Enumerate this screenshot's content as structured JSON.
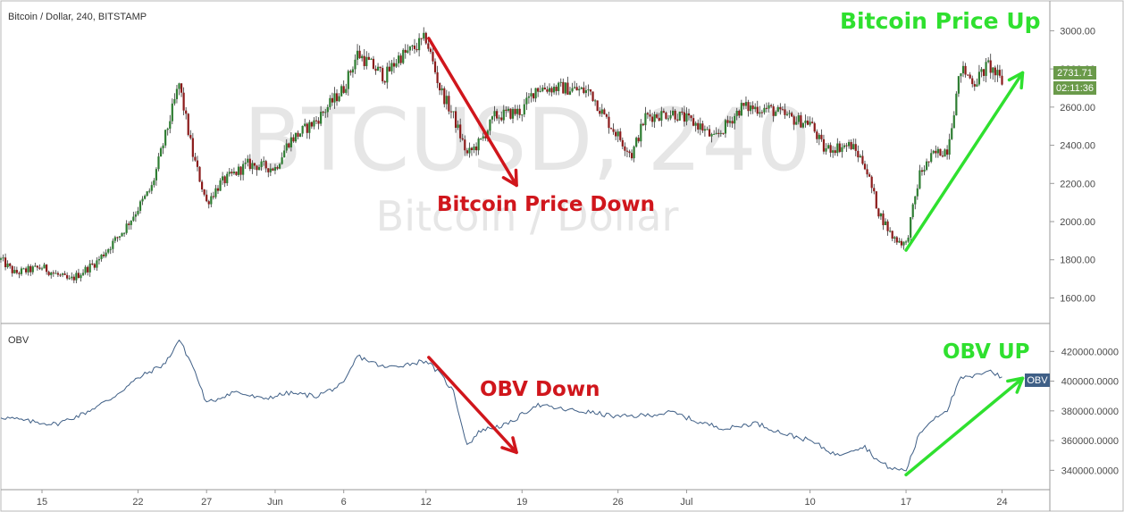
{
  "header": {
    "symbol_title": "Bitcoin / Dollar, 240, BITSTAMP",
    "obv_label": "OBV"
  },
  "watermark": {
    "symbol": "BTCUSD, 240",
    "name": "Bitcoin / Dollar"
  },
  "annotations": {
    "price_up": "Bitcoin Price Up",
    "price_down": "Bitcoin Price Down",
    "obv_down": "OBV Down",
    "obv_up": "OBV UP"
  },
  "badges": {
    "last_price": "2731.71",
    "countdown": "02:11:36",
    "obv_tag": "OBV"
  },
  "colors": {
    "candle_up": "#2e7d32",
    "candle_down": "#8b1a1a",
    "obv_line": "#3f5f86",
    "price_badge": "#6a9a4a",
    "obv_badge": "#3f5f86",
    "arrow_red": "#d0161c",
    "arrow_green": "#2fe02f"
  },
  "chart_data": [
    {
      "type": "candlestick",
      "title": "Bitcoin / Dollar, 240, BITSTAMP",
      "y_ticks": [
        "3000.00",
        "2800.00",
        "2600.00",
        "2400.00",
        "2200.00",
        "2000.00",
        "1800.00",
        "1600.00"
      ],
      "ylim": [
        1560,
        3030
      ],
      "x_ticks": [
        "15",
        "22",
        "27",
        "Jun",
        "6",
        "12",
        "19",
        "26",
        "Jul",
        "10",
        "17",
        "24"
      ],
      "last_value": 2731.71,
      "anchor_points": [
        {
          "x": "May 12",
          "y": 1800
        },
        {
          "x": "May 13",
          "y": 1730
        },
        {
          "x": "May 15",
          "y": 1760
        },
        {
          "x": "May 17",
          "y": 1690
        },
        {
          "x": "May 19",
          "y": 1790
        },
        {
          "x": "May 21",
          "y": 1960
        },
        {
          "x": "May 23",
          "y": 2180
        },
        {
          "x": "May 24",
          "y": 2450
        },
        {
          "x": "May 25",
          "y": 2720
        },
        {
          "x": "May 26",
          "y": 2350
        },
        {
          "x": "May 27",
          "y": 2100
        },
        {
          "x": "May 28",
          "y": 2200
        },
        {
          "x": "May 30",
          "y": 2300
        },
        {
          "x": "Jun 1",
          "y": 2280
        },
        {
          "x": "Jun 2",
          "y": 2420
        },
        {
          "x": "Jun 4",
          "y": 2530
        },
        {
          "x": "Jun 6",
          "y": 2700
        },
        {
          "x": "Jun 7",
          "y": 2880
        },
        {
          "x": "Jun 8",
          "y": 2820
        },
        {
          "x": "Jun 9",
          "y": 2760
        },
        {
          "x": "Jun 10",
          "y": 2860
        },
        {
          "x": "Jun 11",
          "y": 2900
        },
        {
          "x": "Jun 12",
          "y": 2960
        },
        {
          "x": "Jun 13",
          "y": 2700
        },
        {
          "x": "Jun 14",
          "y": 2550
        },
        {
          "x": "Jun 15",
          "y": 2350
        },
        {
          "x": "Jun 16",
          "y": 2420
        },
        {
          "x": "Jun 17",
          "y": 2550
        },
        {
          "x": "Jun 19",
          "y": 2580
        },
        {
          "x": "Jun 20",
          "y": 2700
        },
        {
          "x": "Jun 22",
          "y": 2700
        },
        {
          "x": "Jun 24",
          "y": 2680
        },
        {
          "x": "Jun 25",
          "y": 2550
        },
        {
          "x": "Jun 26",
          "y": 2450
        },
        {
          "x": "Jun 27",
          "y": 2350
        },
        {
          "x": "Jun 28",
          "y": 2550
        },
        {
          "x": "Jun 30",
          "y": 2570
        },
        {
          "x": "Jul 2",
          "y": 2500
        },
        {
          "x": "Jul 3",
          "y": 2430
        },
        {
          "x": "Jul 5",
          "y": 2600
        },
        {
          "x": "Jul 7",
          "y": 2590
        },
        {
          "x": "Jul 9",
          "y": 2530
        },
        {
          "x": "Jul 10",
          "y": 2520
        },
        {
          "x": "Jul 11",
          "y": 2380
        },
        {
          "x": "Jul 13",
          "y": 2400
        },
        {
          "x": "Jul 14",
          "y": 2300
        },
        {
          "x": "Jul 15",
          "y": 2050
        },
        {
          "x": "Jul 16",
          "y": 1920
        },
        {
          "x": "Jul 17",
          "y": 1880
        },
        {
          "x": "Jul 18",
          "y": 2250
        },
        {
          "x": "Jul 19",
          "y": 2350
        },
        {
          "x": "Jul 20",
          "y": 2380
        },
        {
          "x": "Jul 21",
          "y": 2800
        },
        {
          "x": "Jul 22",
          "y": 2730
        },
        {
          "x": "Jul 23",
          "y": 2820
        },
        {
          "x": "Jul 24",
          "y": 2731.71
        }
      ]
    },
    {
      "type": "line",
      "title": "OBV",
      "y_ticks": [
        "420000.0000",
        "400000.0000",
        "380000.0000",
        "360000.0000",
        "340000.0000"
      ],
      "ylim": [
        333000,
        431000
      ],
      "series": [
        {
          "name": "OBV",
          "points": [
            {
              "x": "May 12",
              "y": 376000
            },
            {
              "x": "May 14",
              "y": 373000
            },
            {
              "x": "May 16",
              "y": 371000
            },
            {
              "x": "May 18",
              "y": 378000
            },
            {
              "x": "May 20",
              "y": 388000
            },
            {
              "x": "May 22",
              "y": 402000
            },
            {
              "x": "May 24",
              "y": 412000
            },
            {
              "x": "May 25",
              "y": 428000
            },
            {
              "x": "May 26",
              "y": 410000
            },
            {
              "x": "May 27",
              "y": 385000
            },
            {
              "x": "May 29",
              "y": 393000
            },
            {
              "x": "May 31",
              "y": 388000
            },
            {
              "x": "Jun 2",
              "y": 392000
            },
            {
              "x": "Jun 4",
              "y": 390000
            },
            {
              "x": "Jun 6",
              "y": 398000
            },
            {
              "x": "Jun 7",
              "y": 417000
            },
            {
              "x": "Jun 9",
              "y": 409000
            },
            {
              "x": "Jun 11",
              "y": 412000
            },
            {
              "x": "Jun 12",
              "y": 414000
            },
            {
              "x": "Jun 13",
              "y": 405000
            },
            {
              "x": "Jun 14",
              "y": 393000
            },
            {
              "x": "Jun 15",
              "y": 357000
            },
            {
              "x": "Jun 16",
              "y": 367000
            },
            {
              "x": "Jun 18",
              "y": 371000
            },
            {
              "x": "Jun 20",
              "y": 384000
            },
            {
              "x": "Jun 22",
              "y": 381000
            },
            {
              "x": "Jun 24",
              "y": 379000
            },
            {
              "x": "Jun 26",
              "y": 376000
            },
            {
              "x": "Jun 28",
              "y": 377000
            },
            {
              "x": "Jun 30",
              "y": 379000
            },
            {
              "x": "Jul 2",
              "y": 372000
            },
            {
              "x": "Jul 4",
              "y": 368000
            },
            {
              "x": "Jul 6",
              "y": 372000
            },
            {
              "x": "Jul 8",
              "y": 365000
            },
            {
              "x": "Jul 10",
              "y": 360000
            },
            {
              "x": "Jul 12",
              "y": 350000
            },
            {
              "x": "Jul 13",
              "y": 354000
            },
            {
              "x": "Jul 14",
              "y": 356000
            },
            {
              "x": "Jul 15",
              "y": 346000
            },
            {
              "x": "Jul 16",
              "y": 341000
            },
            {
              "x": "Jul 17",
              "y": 340000
            },
            {
              "x": "Jul 18",
              "y": 365000
            },
            {
              "x": "Jul 19",
              "y": 375000
            },
            {
              "x": "Jul 20",
              "y": 381000
            },
            {
              "x": "Jul 21",
              "y": 402000
            },
            {
              "x": "Jul 22",
              "y": 403000
            },
            {
              "x": "Jul 23",
              "y": 408000
            },
            {
              "x": "Jul 24",
              "y": 402000
            }
          ]
        }
      ]
    }
  ]
}
